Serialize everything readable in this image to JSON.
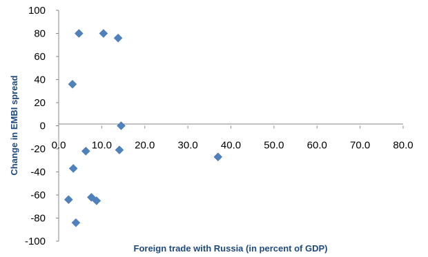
{
  "colors": {
    "marker": "#4F81BD",
    "axis": "#868686",
    "axis_title": "#1F497D"
  },
  "chart_data": {
    "type": "scatter",
    "title": "",
    "xlabel": "Foreign trade with Russia (in percent of GDP)",
    "ylabel": "Change in EMBI spread",
    "xlim": [
      0,
      80
    ],
    "ylim": [
      -100,
      100
    ],
    "x_ticks": [
      "0.0",
      "10.0",
      "20.0",
      "30.0",
      "40.0",
      "50.0",
      "60.0",
      "70.0",
      "80.0"
    ],
    "y_ticks": [
      "100",
      "80",
      "60",
      "40",
      "20",
      "0",
      "-20",
      "-40",
      "-60",
      "-80",
      "-100"
    ],
    "grid": false,
    "legend": "none",
    "marker": "diamond",
    "points": [
      {
        "x": 4.7,
        "y": 80
      },
      {
        "x": 10.4,
        "y": 80
      },
      {
        "x": 13.8,
        "y": 76
      },
      {
        "x": 3.2,
        "y": 36
      },
      {
        "x": 14.5,
        "y": 0
      },
      {
        "x": 6.3,
        "y": -22
      },
      {
        "x": 14.1,
        "y": -21
      },
      {
        "x": 37.0,
        "y": -27
      },
      {
        "x": 3.4,
        "y": -37
      },
      {
        "x": 2.3,
        "y": -64
      },
      {
        "x": 7.6,
        "y": -62
      },
      {
        "x": 8.8,
        "y": -65
      },
      {
        "x": 4.0,
        "y": -84
      }
    ]
  }
}
